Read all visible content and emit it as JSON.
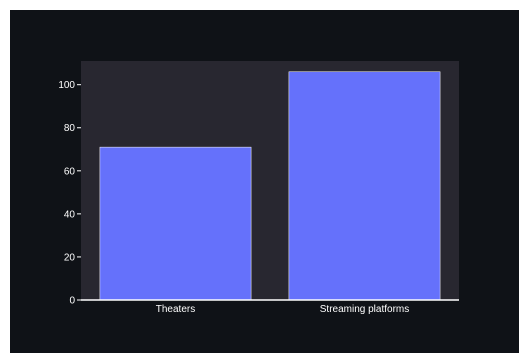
{
  "chart_data": {
    "type": "bar",
    "categories": [
      "Theaters",
      "Streaming platforms"
    ],
    "values": [
      71,
      106
    ],
    "title": "",
    "xlabel": "",
    "ylabel": "",
    "ylim": [
      0,
      111
    ],
    "yticks": [
      0,
      20,
      40,
      60,
      80,
      100
    ],
    "grid": false,
    "colors": {
      "figure_bg": "#0f1217",
      "plot_bg": "#282730",
      "bar": "#6571fb",
      "bar_edge": "#ffffff",
      "axis_line": "#ffffff",
      "text": "#ffffff"
    }
  }
}
